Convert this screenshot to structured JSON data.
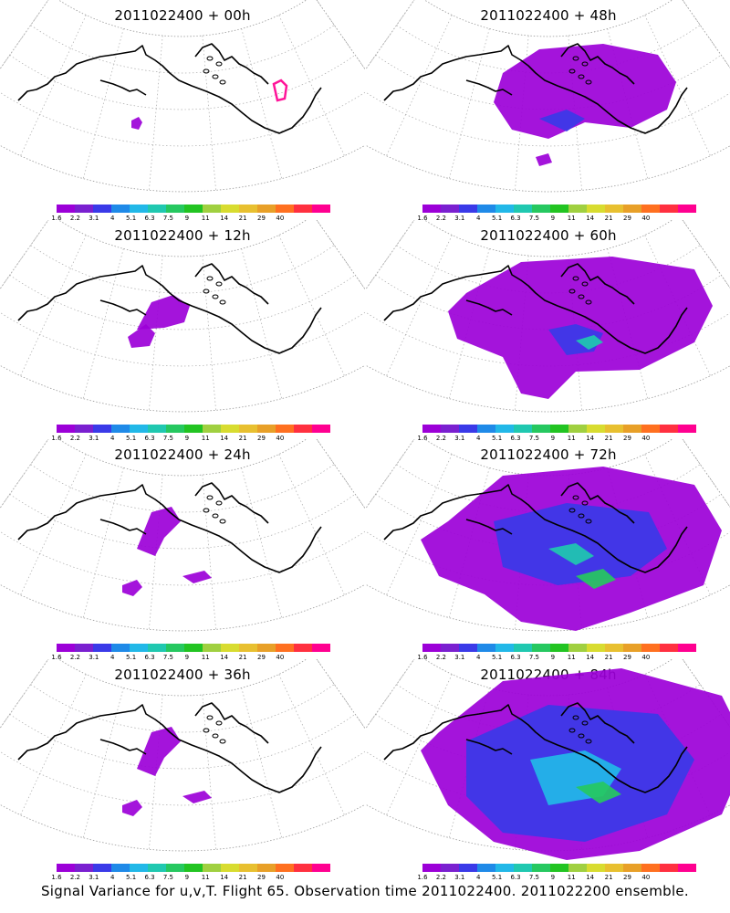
{
  "panels": [
    {
      "title": "2011022400 + 00h",
      "level": 0
    },
    {
      "title": "2011022400 + 48h",
      "level": 3
    },
    {
      "title": "2011022400 + 12h",
      "level": 1
    },
    {
      "title": "2011022400 + 60h",
      "level": 4
    },
    {
      "title": "2011022400 + 24h",
      "level": 2
    },
    {
      "title": "2011022400 + 72h",
      "level": 5
    },
    {
      "title": "2011022400 + 36h",
      "level": 2
    },
    {
      "title": "2011022400 + 84h",
      "level": 6
    }
  ],
  "colorbar": {
    "colors": [
      "#9c00d8",
      "#7a20d0",
      "#3a3ae8",
      "#1f8ae8",
      "#22b8e8",
      "#20c8b0",
      "#26c860",
      "#22c422",
      "#a0d040",
      "#d8dc30",
      "#e8c030",
      "#e8a028",
      "#ff7020",
      "#ff3040",
      "#ff0090"
    ],
    "labels": [
      "1.6",
      "2.2",
      "3.1",
      "4",
      "5.1",
      "6.3",
      "7.5",
      "9",
      "11",
      "14",
      "21",
      "29",
      "40"
    ]
  },
  "footer": "Signal Variance for u,v,T. Flight 65. Observation time 2011022400. 2011022200 ensemble."
}
